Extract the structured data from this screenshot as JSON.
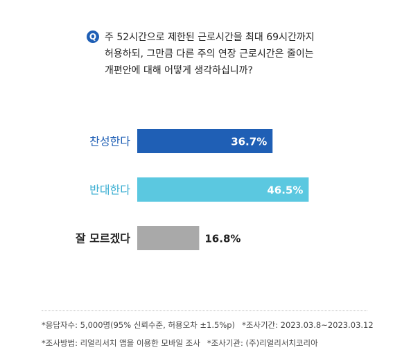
{
  "question": {
    "badge": "Q",
    "lines": [
      "주 52시간으로 제한된 근로시간을 최대 69시간까지",
      "허용하되, 그만큼 다른 주의 연장 근로시간은 줄이는",
      "개편안에 대해 어떻게 생각하십니까?"
    ]
  },
  "chart_data": {
    "type": "bar",
    "orientation": "horizontal",
    "categories": [
      "찬성한다",
      "반대한다",
      "잘 모르겠다"
    ],
    "values": [
      36.7,
      46.5,
      16.8
    ],
    "value_labels": [
      "36.7%",
      "46.5%",
      "16.8%"
    ],
    "xlim": [
      0,
      50
    ],
    "grid": false,
    "colors": [
      "#1f5fb5",
      "#5bc8e0",
      "#a9a9a9"
    ],
    "category_label_colors": [
      "#1f5fb5",
      "#3aaed2",
      "#222222"
    ],
    "value_label_inside": [
      true,
      true,
      false
    ]
  },
  "footnotes": {
    "line1_a": "*응답자수: 5,000명(95% 신뢰수준, 허용오차 ±1.5%p)",
    "line1_b": "*조사기간: 2023.03.8~2023.03.12",
    "line2_a": "*조사방법: 리얼리서치 앱을 이용한 모바일 조사",
    "line2_b": "*조사기관: (주)리얼리서치코리아"
  }
}
